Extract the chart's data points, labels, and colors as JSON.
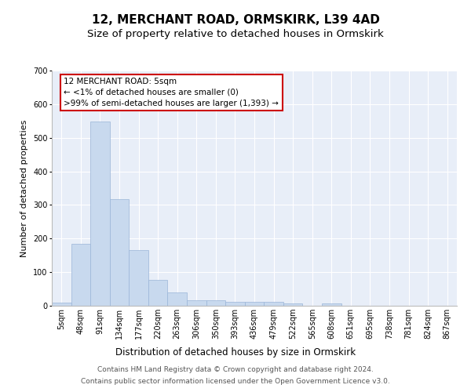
{
  "title": "12, MERCHANT ROAD, ORMSKIRK, L39 4AD",
  "subtitle": "Size of property relative to detached houses in Ormskirk",
  "xlabel": "Distribution of detached houses by size in Ormskirk",
  "ylabel": "Number of detached properties",
  "categories": [
    "5sqm",
    "48sqm",
    "91sqm",
    "134sqm",
    "177sqm",
    "220sqm",
    "263sqm",
    "306sqm",
    "350sqm",
    "393sqm",
    "436sqm",
    "479sqm",
    "522sqm",
    "565sqm",
    "608sqm",
    "651sqm",
    "695sqm",
    "738sqm",
    "781sqm",
    "824sqm",
    "867sqm"
  ],
  "values": [
    9,
    185,
    548,
    317,
    165,
    77,
    40,
    17,
    17,
    11,
    12,
    12,
    8,
    0,
    7,
    0,
    0,
    0,
    0,
    0,
    0
  ],
  "bar_color": "#c8d9ee",
  "bar_edge_color": "#9ab5d8",
  "background_color": "#e8eef8",
  "grid_color": "#ffffff",
  "annotation_box_color": "#cc0000",
  "annotation_text": "12 MERCHANT ROAD: 5sqm\n← <1% of detached houses are smaller (0)\n>99% of semi-detached houses are larger (1,393) →",
  "ylim": [
    0,
    700
  ],
  "yticks": [
    0,
    100,
    200,
    300,
    400,
    500,
    600,
    700
  ],
  "footer_line1": "Contains HM Land Registry data © Crown copyright and database right 2024.",
  "footer_line2": "Contains public sector information licensed under the Open Government Licence v3.0.",
  "title_fontsize": 11,
  "subtitle_fontsize": 9.5,
  "xlabel_fontsize": 8.5,
  "ylabel_fontsize": 8,
  "tick_fontsize": 7,
  "annotation_fontsize": 7.5,
  "footer_fontsize": 6.5
}
